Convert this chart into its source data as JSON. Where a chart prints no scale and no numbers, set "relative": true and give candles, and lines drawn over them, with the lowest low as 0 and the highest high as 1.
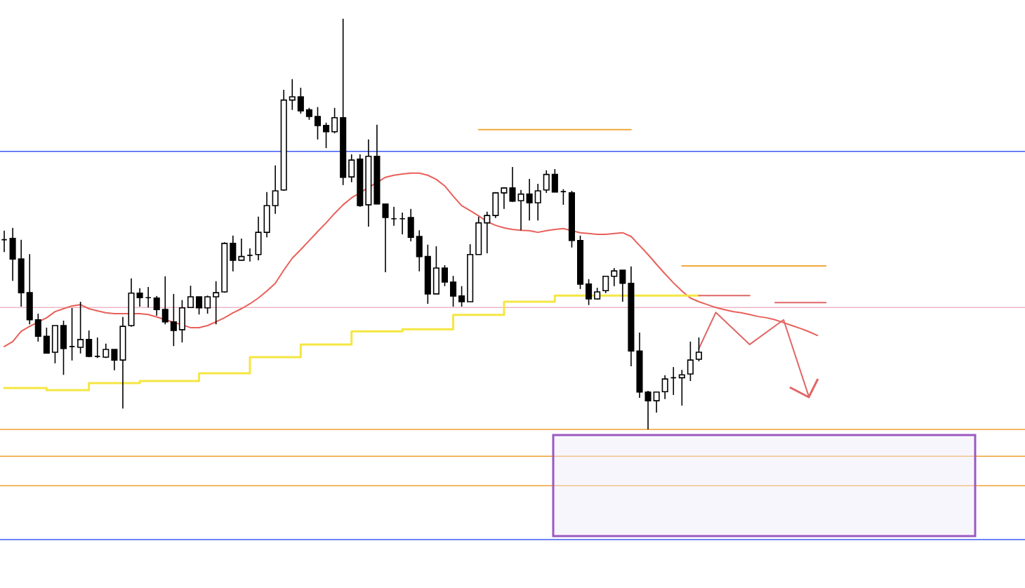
{
  "chart_data": {
    "type": "candlestick",
    "relative": true,
    "categories": [
      null,
      null,
      null,
      null,
      null,
      null,
      null,
      null,
      null,
      null,
      null,
      null,
      null,
      null,
      null,
      null,
      null,
      null,
      null,
      null,
      null,
      null,
      null,
      null,
      null,
      null,
      null,
      null,
      null,
      null,
      null,
      null,
      null,
      null,
      null,
      null,
      null,
      null,
      null,
      null,
      null,
      null,
      null,
      null,
      null,
      null,
      null,
      null,
      null,
      null,
      null,
      null,
      null,
      null,
      null,
      null,
      null,
      null,
      null,
      null,
      null,
      null,
      null,
      null,
      null,
      null,
      null,
      null,
      null,
      null,
      null,
      null,
      null,
      null,
      null,
      null,
      null,
      null,
      null,
      null,
      null,
      null,
      null,
      null,
      null,
      null,
      null,
      null,
      null,
      null,
      null,
      null,
      null,
      null,
      null,
      null,
      null,
      null,
      null,
      null,
      null,
      null,
      null,
      null,
      null,
      null,
      null,
      null,
      null,
      null,
      null,
      null,
      null,
      null,
      null,
      null,
      null,
      null,
      null,
      null,
      null
    ],
    "ohlc": [
      [
        0.462,
        0.484,
        0.432,
        0.462
      ],
      [
        0.465,
        0.491,
        0.362,
        0.415
      ],
      [
        0.415,
        0.462,
        0.299,
        0.333
      ],
      [
        0.333,
        0.427,
        0.256,
        0.267
      ],
      [
        0.267,
        0.282,
        0.214,
        0.227
      ],
      [
        0.227,
        0.248,
        0.185,
        0.186
      ],
      [
        0.188,
        0.253,
        0.161,
        0.253
      ],
      [
        0.253,
        0.265,
        0.133,
        0.197
      ],
      [
        0.202,
        0.296,
        0.168,
        0.202
      ],
      [
        0.2,
        0.311,
        0.185,
        0.219
      ],
      [
        0.219,
        0.241,
        0.176,
        0.178
      ],
      [
        0.178,
        0.224,
        0.174,
        0.178
      ],
      [
        0.176,
        0.209,
        0.174,
        0.195
      ],
      [
        0.195,
        0.195,
        0.144,
        0.169
      ],
      [
        0.169,
        0.274,
        0.051,
        0.251
      ],
      [
        0.253,
        0.368,
        0.25,
        0.332
      ],
      [
        0.332,
        0.344,
        0.299,
        0.321
      ],
      [
        0.321,
        0.347,
        0.297,
        0.321
      ],
      [
        0.32,
        0.325,
        0.277,
        0.292
      ],
      [
        0.292,
        0.373,
        0.256,
        0.262
      ],
      [
        0.262,
        0.33,
        0.203,
        0.241
      ],
      [
        0.243,
        0.315,
        0.212,
        0.296
      ],
      [
        0.297,
        0.35,
        0.297,
        0.323
      ],
      [
        0.323,
        0.323,
        0.28,
        0.296
      ],
      [
        0.296,
        0.326,
        0.282,
        0.323
      ],
      [
        0.323,
        0.361,
        0.256,
        0.333
      ],
      [
        0.335,
        0.456,
        0.333,
        0.453
      ],
      [
        0.453,
        0.472,
        0.385,
        0.412
      ],
      [
        0.412,
        0.465,
        0.412,
        0.421
      ],
      [
        0.424,
        0.441,
        0.409,
        0.424
      ],
      [
        0.426,
        0.518,
        0.412,
        0.48
      ],
      [
        0.48,
        0.578,
        0.468,
        0.545
      ],
      [
        0.545,
        0.643,
        0.525,
        0.581
      ],
      [
        0.583,
        0.827,
        0.581,
        0.802
      ],
      [
        0.802,
        0.853,
        0.778,
        0.81
      ],
      [
        0.81,
        0.832,
        0.769,
        0.776
      ],
      [
        0.778,
        0.783,
        0.754,
        0.762
      ],
      [
        0.762,
        0.785,
        0.706,
        0.74
      ],
      [
        0.74,
        0.747,
        0.685,
        0.725
      ],
      [
        0.725,
        0.783,
        0.721,
        0.759
      ],
      [
        0.759,
        1,
        0.595,
        0.614
      ],
      [
        0.615,
        0.67,
        0.602,
        0.656
      ],
      [
        0.658,
        0.67,
        0.542,
        0.545
      ],
      [
        0.547,
        0.706,
        0.494,
        0.665
      ],
      [
        0.665,
        0.742,
        0.549,
        0.549
      ],
      [
        0.549,
        0.55,
        0.383,
        0.516
      ],
      [
        0.513,
        0.542,
        0.496,
        0.513
      ],
      [
        0.513,
        0.528,
        0.475,
        0.513
      ],
      [
        0.516,
        0.537,
        0.458,
        0.468
      ],
      [
        0.47,
        0.485,
        0.385,
        0.421
      ],
      [
        0.421,
        0.45,
        0.306,
        0.33
      ],
      [
        0.33,
        0.446,
        0.33,
        0.393
      ],
      [
        0.393,
        0.4,
        0.349,
        0.359
      ],
      [
        0.359,
        0.374,
        0.299,
        0.325
      ],
      [
        0.325,
        0.349,
        0.299,
        0.311
      ],
      [
        0.311,
        0.451,
        0.311,
        0.426
      ],
      [
        0.426,
        0.518,
        0.426,
        0.503
      ],
      [
        0.503,
        0.53,
        0.429,
        0.521
      ],
      [
        0.521,
        0.578,
        0.515,
        0.576
      ],
      [
        0.576,
        0.59,
        0.537,
        0.588
      ],
      [
        0.588,
        0.639,
        0.554,
        0.556
      ],
      [
        0.557,
        0.583,
        0.485,
        0.573
      ],
      [
        0.573,
        0.61,
        0.509,
        0.552
      ],
      [
        0.552,
        0.598,
        0.509,
        0.581
      ],
      [
        0.583,
        0.631,
        0.576,
        0.621
      ],
      [
        0.621,
        0.634,
        0.578,
        0.578
      ],
      [
        0.579,
        0.585,
        0.547,
        0.579
      ],
      [
        0.576,
        0.581,
        0.443,
        0.46
      ],
      [
        0.46,
        0.472,
        0.342,
        0.354
      ],
      [
        0.354,
        0.366,
        0.303,
        0.318
      ],
      [
        0.318,
        0.345,
        0.316,
        0.335
      ],
      [
        0.338,
        0.374,
        0.332,
        0.373
      ],
      [
        0.373,
        0.393,
        0.349,
        0.386
      ],
      [
        0.388,
        0.388,
        0.311,
        0.356
      ],
      [
        0.356,
        0.397,
        0.154,
        0.191
      ],
      [
        0.191,
        0.236,
        0.077,
        0.091
      ],
      [
        0.091,
        0.094,
        0,
        0.07
      ],
      [
        0.07,
        0.092,
        0.041,
        0.091
      ],
      [
        0.092,
        0.132,
        0.074,
        0.123
      ],
      [
        0.126,
        0.152,
        0.084,
        0.126
      ],
      [
        0.126,
        0.145,
        0.058,
        0.133
      ],
      [
        0.135,
        0.214,
        0.118,
        0.169
      ],
      [
        0.171,
        0.224,
        0.166,
        0.188
      ],
      null,
      null,
      null,
      null,
      null,
      null,
      null,
      null,
      null,
      null,
      null,
      null,
      null,
      null,
      null,
      null,
      null,
      null,
      null,
      null,
      null,
      null,
      null,
      null,
      null,
      null,
      null,
      null,
      null,
      null,
      null,
      null,
      null,
      null,
      null,
      null,
      null,
      null
    ],
    "series": [
      {
        "type": "line",
        "color": "#e8605a",
        "values": [
          0.202,
          0.214,
          0.239,
          0.251,
          null,
          0.272,
          0.287,
          0.294,
          0.301,
          0.304,
          0.294,
          0.289,
          0.284,
          0.282,
          0.282,
          null,
          0.282,
          0.28,
          0.274,
          null,
          null,
          null,
          0.248,
          0.248,
          0.253,
          0.262,
          0.272,
          0.284,
          0.294,
          0.306,
          0.32,
          0.337,
          0.356,
          0.388,
          0.417,
          0.438,
          0.46,
          0.482,
          0.503,
          0.526,
          0.547,
          0.564,
          null,
          null,
          null,
          0.614,
          0.619,
          0.622,
          0.624,
          0.624,
          0.619,
          0.609,
          0.593,
          0.568,
          0.545,
          0.533,
          0.52,
          0.506,
          0.497,
          0.491,
          0.487,
          0.485,
          0.484,
          0.48,
          0.484,
          0.487,
          0.489,
          null,
          0.479,
          0.477,
          0.475,
          0.475,
          0.477,
          0.479,
          0.47,
          0.448,
          0.426,
          0.402,
          0.379,
          0.357,
          0.337,
          0.32,
          0.311,
          0.304,
          0.297,
          0.292,
          0.287,
          0.284,
          0.28,
          0.275,
          0.272,
          0.267,
          0.26,
          0.253,
          0.246,
          0.238,
          0.229,
          null,
          null,
          null,
          null,
          null,
          null,
          null,
          null,
          null,
          null,
          null,
          null,
          null,
          null,
          null,
          null,
          null,
          null,
          null,
          null,
          null,
          null,
          null,
          null
        ]
      },
      {
        "type": "step",
        "color": "#f5e642",
        "values": [
          0.101,
          0.101,
          0.101,
          0.101,
          0.101,
          0.096,
          0.096,
          0.096,
          0.096,
          0.096,
          0.113,
          0.113,
          0.113,
          0.113,
          0.113,
          0.113,
          0.118,
          0.118,
          0.118,
          0.118,
          0.118,
          0.118,
          0.118,
          0.137,
          0.137,
          0.137,
          0.137,
          0.137,
          0.137,
          0.176,
          0.176,
          0.176,
          0.176,
          0.176,
          0.176,
          0.207,
          0.207,
          0.207,
          0.207,
          0.207,
          0.207,
          0.239,
          0.239,
          0.239,
          0.239,
          0.239,
          0.239,
          0.244,
          0.244,
          0.244,
          0.244,
          0.244,
          0.244,
          0.279,
          0.279,
          0.279,
          0.279,
          0.279,
          0.279,
          0.311,
          0.311,
          0.311,
          0.311,
          0.311,
          0.311,
          0.326,
          0.326,
          0.326,
          0.326,
          null,
          0.326,
          0.326,
          0.326,
          0.326,
          null,
          0.326,
          0.326,
          0.326,
          0.326,
          0.326,
          0.326,
          0.326,
          0.326,
          null,
          null,
          null,
          null,
          null,
          null,
          null,
          null,
          null,
          null,
          null,
          null,
          null,
          null,
          null,
          null,
          null,
          null,
          null,
          null,
          null,
          null,
          null,
          null,
          null,
          null,
          null,
          null,
          null,
          null,
          null,
          null,
          null,
          null,
          null,
          null,
          null,
          null
        ]
      },
      {
        "type": "line",
        "color": "#f2a93b",
        "values": [
          null,
          null,
          null,
          null,
          null,
          null,
          null,
          null,
          null,
          null,
          null,
          null,
          null,
          null,
          null,
          null,
          null,
          null,
          null,
          null,
          null,
          null,
          null,
          null,
          null,
          null,
          null,
          null,
          null,
          null,
          null,
          null,
          null,
          null,
          null,
          null,
          null,
          null,
          null,
          null,
          null,
          null,
          null,
          null,
          null,
          null,
          null,
          null,
          null,
          null,
          null,
          null,
          null,
          null,
          null,
          null,
          0.73,
          0.73,
          0.73,
          0.73,
          0.73,
          0.73,
          0.73,
          0.73,
          0.73,
          0.73,
          0.73,
          0.73,
          0.73,
          0.73,
          0.73,
          0.73,
          0.73,
          0.73,
          0.73,
          null,
          null,
          null,
          null,
          null,
          null,
          null,
          null,
          null,
          null,
          null,
          null,
          null,
          null,
          null,
          null,
          null,
          null,
          null,
          null,
          null,
          null,
          null,
          null,
          null,
          null,
          null,
          null,
          null,
          null,
          null,
          null,
          null,
          null,
          null,
          null,
          null,
          null,
          null,
          null,
          null,
          null,
          null,
          null,
          null,
          null
        ]
      },
      {
        "type": "line",
        "color": "#f2a93b",
        "values": [
          null,
          null,
          null,
          null,
          null,
          null,
          null,
          null,
          null,
          null,
          null,
          null,
          null,
          null,
          null,
          null,
          null,
          null,
          null,
          null,
          null,
          null,
          null,
          null,
          null,
          null,
          null,
          null,
          null,
          null,
          null,
          null,
          null,
          null,
          null,
          null,
          null,
          null,
          null,
          null,
          null,
          null,
          null,
          null,
          null,
          null,
          null,
          null,
          null,
          null,
          null,
          null,
          null,
          null,
          null,
          null,
          null,
          null,
          null,
          null,
          null,
          null,
          null,
          null,
          null,
          null,
          null,
          null,
          null,
          null,
          null,
          null,
          null,
          null,
          null,
          null,
          null,
          null,
          null,
          null,
          0.398,
          0.398,
          0.398,
          0.398,
          0.398,
          0.398,
          0.398,
          0.398,
          0.398,
          0.398,
          0.398,
          0.398,
          0.398,
          0.398,
          0.398,
          0.398,
          0.398,
          0.398,
          null,
          null,
          null,
          null,
          null,
          null,
          null,
          null,
          null,
          null,
          null,
          null,
          null,
          null,
          null,
          null,
          null,
          null,
          null,
          null,
          null,
          null,
          null
        ]
      },
      {
        "type": "line",
        "color": "#e06666",
        "values": [
          null,
          null,
          null,
          null,
          null,
          null,
          null,
          null,
          null,
          null,
          null,
          null,
          null,
          null,
          null,
          null,
          null,
          null,
          null,
          null,
          null,
          null,
          null,
          null,
          null,
          null,
          null,
          null,
          null,
          null,
          null,
          null,
          null,
          null,
          null,
          null,
          null,
          null,
          null,
          null,
          null,
          null,
          null,
          null,
          null,
          null,
          null,
          null,
          null,
          null,
          null,
          null,
          null,
          null,
          null,
          null,
          null,
          null,
          null,
          null,
          null,
          null,
          null,
          null,
          null,
          null,
          null,
          null,
          null,
          null,
          null,
          null,
          null,
          null,
          null,
          null,
          null,
          null,
          null,
          null,
          null,
          null,
          0.326,
          0.326,
          0.326,
          0.326,
          0.326,
          0.326,
          0.326,
          null,
          null,
          null,
          null,
          null,
          null,
          null,
          null,
          null,
          null,
          null,
          null,
          null,
          null,
          null,
          null,
          null,
          null,
          null,
          null,
          null,
          null,
          null,
          null,
          null,
          null,
          null,
          null,
          null,
          null,
          null,
          null
        ]
      },
      {
        "type": "line",
        "color": "#e06666",
        "values": [
          null,
          null,
          null,
          null,
          null,
          null,
          null,
          null,
          null,
          null,
          null,
          null,
          null,
          null,
          null,
          null,
          null,
          null,
          null,
          null,
          null,
          null,
          null,
          null,
          null,
          null,
          null,
          null,
          null,
          null,
          null,
          null,
          null,
          null,
          null,
          null,
          null,
          null,
          null,
          null,
          null,
          null,
          null,
          null,
          null,
          null,
          null,
          null,
          null,
          null,
          null,
          null,
          null,
          null,
          null,
          null,
          null,
          null,
          null,
          null,
          null,
          null,
          null,
          null,
          null,
          null,
          null,
          null,
          null,
          null,
          null,
          null,
          null,
          null,
          null,
          null,
          null,
          null,
          null,
          null,
          null,
          null,
          null,
          null,
          null,
          null,
          null,
          null,
          null,
          null,
          null,
          0.309,
          0.309,
          0.309,
          0.309,
          0.309,
          0.309,
          0.309,
          null,
          null,
          null,
          null,
          null,
          null,
          null,
          null,
          null,
          null,
          null,
          null,
          null,
          null,
          null,
          null,
          null,
          null,
          null,
          null,
          null,
          null,
          null
        ]
      },
      {
        "type": "line",
        "color": "#e06666",
        "values": [
          null,
          null,
          null,
          null,
          null,
          null,
          null,
          null,
          null,
          null,
          null,
          null,
          null,
          null,
          null,
          null,
          null,
          null,
          null,
          null,
          null,
          null,
          null,
          null,
          null,
          null,
          null,
          null,
          null,
          null,
          null,
          null,
          null,
          null,
          null,
          null,
          null,
          null,
          null,
          null,
          null,
          null,
          null,
          null,
          null,
          null,
          null,
          null,
          null,
          null,
          null,
          null,
          null,
          null,
          null,
          null,
          null,
          null,
          null,
          null,
          null,
          null,
          null,
          null,
          null,
          null,
          null,
          null,
          null,
          null,
          null,
          null,
          null,
          null,
          null,
          null,
          null,
          null,
          null,
          null,
          null,
          null,
          0.197,
          null,
          0.285,
          null,
          null,
          null,
          0.207,
          null,
          null,
          null,
          0.267,
          null,
          null,
          0.079,
          null,
          null,
          null,
          null,
          null,
          null,
          null,
          null,
          null,
          null,
          null,
          null,
          null,
          null,
          null,
          null,
          null,
          null,
          null,
          null,
          null,
          null,
          null,
          null,
          null
        ]
      }
    ],
    "ref_lines": [
      {
        "axis": "y",
        "value": 0.677,
        "color": "#3d5af1"
      },
      {
        "axis": "y",
        "value": 0.297,
        "color": "#f0b8c8"
      },
      {
        "axis": "y",
        "value": 0,
        "color": "#f0a030"
      },
      {
        "axis": "y",
        "value": -0.065,
        "color": "#f0a030"
      },
      {
        "axis": "y",
        "value": -0.137,
        "color": "#f0a030"
      },
      {
        "axis": "y",
        "value": -0.268,
        "color": "#3d5af1"
      }
    ]
  }
}
